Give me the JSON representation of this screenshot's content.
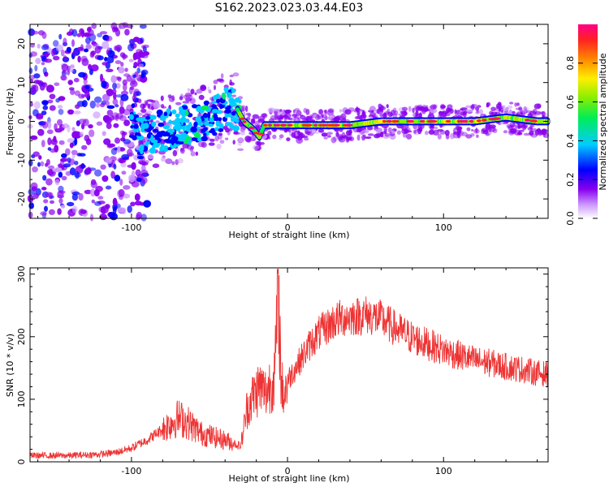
{
  "figure": {
    "title": "S162.2023.023.03.44.E03"
  },
  "chart_data": [
    {
      "type": "heatmap",
      "xlabel": "Height of straight line (km)",
      "ylabel": "Frequency (Hz)",
      "xlim": [
        -165,
        167
      ],
      "ylim": [
        -25,
        25
      ],
      "x_ticks": [
        -100,
        0,
        100
      ],
      "y_ticks": [
        -20,
        -10,
        0,
        10,
        20
      ],
      "colorbar": {
        "label": "Normalized spectral amplitude",
        "range": [
          0,
          1
        ],
        "ticks": [
          "0.0",
          "0.2",
          "0.4",
          "0.6",
          "0.8"
        ]
      },
      "noise_region_x": [
        -165,
        -100
      ],
      "ridge": [
        {
          "x": -95,
          "y": -5
        },
        {
          "x": -85,
          "y": -3
        },
        {
          "x": -75,
          "y": -2
        },
        {
          "x": -65,
          "y": -1
        },
        {
          "x": -55,
          "y": 0
        },
        {
          "x": -45,
          "y": 2
        },
        {
          "x": -38,
          "y": 4
        },
        {
          "x": -32,
          "y": 3
        },
        {
          "x": -28,
          "y": 0
        },
        {
          "x": -22,
          "y": -2
        },
        {
          "x": -18,
          "y": -4
        },
        {
          "x": -15,
          "y": -1
        },
        {
          "x": -10,
          "y": -1
        },
        {
          "x": 0,
          "y": -1
        },
        {
          "x": 20,
          "y": -1
        },
        {
          "x": 40,
          "y": -1
        },
        {
          "x": 60,
          "y": 0
        },
        {
          "x": 80,
          "y": 0
        },
        {
          "x": 100,
          "y": 0
        },
        {
          "x": 120,
          "y": 0
        },
        {
          "x": 140,
          "y": 1
        },
        {
          "x": 160,
          "y": 0
        },
        {
          "x": 167,
          "y": 0
        }
      ]
    },
    {
      "type": "line",
      "xlabel": "Height of straight line (km)",
      "ylabel": "SNR (10 * v/v)",
      "xlim": [
        -165,
        167
      ],
      "ylim": [
        0,
        310
      ],
      "x_ticks": [
        -100,
        0,
        100
      ],
      "y_ticks": [
        0,
        100,
        200,
        300
      ],
      "color": "#ee3333",
      "series": [
        {
          "x": [
            -165,
            -140,
            -120,
            -110,
            -100,
            -90,
            -80,
            -75,
            -70,
            -65,
            -60,
            -55,
            -50,
            -45,
            -40,
            -35,
            -30,
            -26,
            -22,
            -18,
            -14,
            -10,
            -8,
            -6,
            -4,
            -2,
            0,
            5,
            10,
            15,
            20,
            25,
            30,
            35,
            40,
            45,
            50,
            55,
            60,
            65,
            70,
            75,
            80,
            90,
            100,
            110,
            120,
            130,
            140,
            150,
            160,
            167
          ],
          "y": [
            10,
            10,
            12,
            15,
            22,
            35,
            52,
            62,
            70,
            65,
            55,
            45,
            42,
            38,
            35,
            30,
            25,
            85,
            105,
            120,
            110,
            130,
            140,
            300,
            120,
            110,
            130,
            150,
            170,
            190,
            205,
            215,
            225,
            230,
            232,
            233,
            235,
            232,
            228,
            220,
            212,
            205,
            198,
            188,
            178,
            170,
            162,
            158,
            152,
            148,
            142,
            140
          ]
        }
      ]
    }
  ]
}
